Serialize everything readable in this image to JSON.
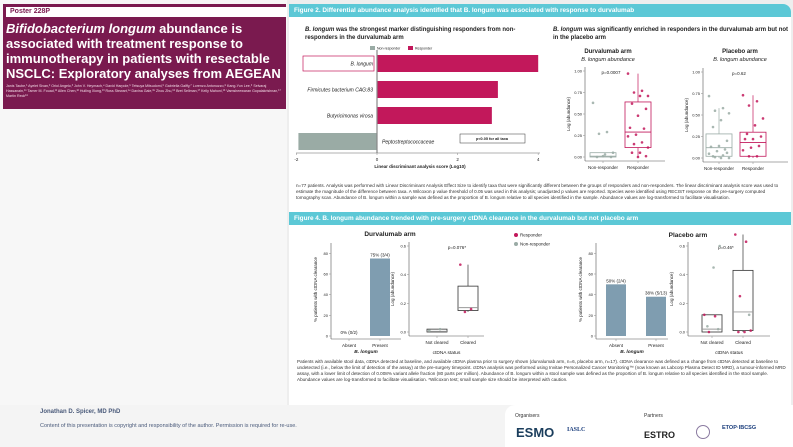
{
  "poster": {
    "number": "Poster 228P",
    "title_italic": "Bifidobacterium longum",
    "title_rest": " abundance is associated with treatment response to immunotherapy in patients with resectable NSCLC: Exploratory analyses from AEGEAN",
    "authors": "Janis Taube,¹ Ayelet Sivan,² Oriol Angelo,³ John V. Heymach,⁴ David Harpole,⁵ Tetsuya Mitsudomi,⁶ Gabriella Galffy,⁷ Lorenzo Antonuzzo,⁸ Kang-Yun Lee,⁹ Selvaraj Hassanain,¹⁰ Tamer M. Fouad,¹¹ Allen Chen,¹² Huiling Xiong,¹³ Ross Stewart,¹⁴ Davina Gale,¹⁵ Zhou Zhu,¹⁶ Bret Sellman,¹⁷ Kelly Mahoni,¹⁶ Vamsheewaran Gopalakrishnan,¹⁷ Martin Reck¹⁸"
  },
  "fig2": {
    "header": "Figure 2. Differential abundance analysis identified that B. longum was associated with response to durvalumab",
    "left_sub_italic": "B. longum",
    "left_sub_rest": " was the strongest marker distinguishing responders from non-responders in the durvalumab arm",
    "right_sub_italic": "B. longum",
    "right_sub_rest": " was significantly enriched in responders in the durvalumab arm but not in the placebo arm",
    "caption": "n=77 patients. Analysis was performed with Linear Discriminant Analysis Effect Size to identify taxa that were significantly different between the groups of responders and non-responders. The linear discriminant analysis score was used to estimate the magnitude of the difference between taxa. A Wilcoxon p value threshold of 0.05 was used in this analysis; unadjusted p values are reported. Species were identified using RECIST response on the pre-surgery computed tomography scan. Abundance of B. longum within a sample was defined as the proportion of B. longum relative to all species identified in the sample. Abundance values are log-transformed to facilitate visualisation."
  },
  "fig4": {
    "header": "Figure 4. B. longum abundance trended with pre-surgery ctDNA clearance in the durvalumab but not placebo arm",
    "caption": "Patients with available stool data, ctDNA detected at baseline, and available ctDNA plasma prior to surgery shown (durvalumab arm, n=6, placebo arm, n=17). ctDNA clearance was defined as a change from ctDNA detected at baseline to undetected (i.e., below the limit of detection of the assay) at the pre-surgery timepoint. ctDNA analysis was performed using Invitae Personalized Cancer Monitoring™ (now known as Labcorp Plasma Detect ID MRD), a tumour-informed MRD assay, with a lower limit of detection of 0.008% variant allele fraction (80 parts per million). Abundance of B. longum within a stool sample was defined as the proportion of B. longum relative to all species identified in the stool sample. Abundance values are log-transformed to facilitate visualisation. *Wilcoxon test; small sample size should be interpreted with caution.",
    "legend": [
      {
        "label": "Responder",
        "color": "#c2185b"
      },
      {
        "label": "Non-responder",
        "color": "#9aaba5"
      }
    ]
  },
  "footer": {
    "presenter": "Jonathan D. Spicer, MD PhD",
    "copyright": "Content of this presentation is copyright and responsibility of the author. Permission is required for re-use.",
    "organisers": "Organisers",
    "partners": "Partners",
    "logos": [
      "ESMO",
      "IASLC",
      "ESTRO",
      "ETOP·IBCSG"
    ]
  },
  "colors": {
    "maroon": "#7a1a4f",
    "teal": "#5cc8d6",
    "responder": "#c2185b",
    "non_responder": "#9aaba5",
    "bar_blue": "#7f9db0"
  },
  "chart_data": [
    {
      "type": "bar",
      "orientation": "horizontal",
      "legend": [
        "Non-responder",
        "Responder"
      ],
      "categories": [
        "B. longum",
        "Firmicutes bacterium CAG:83",
        "Butyricimonas virosa",
        "Peptostreptococcaceae"
      ],
      "values": [
        4.0,
        3.0,
        2.85,
        -1.95
      ],
      "groups": [
        "Responder",
        "Responder",
        "Responder",
        "Non-responder"
      ],
      "xlabel": "Linear discriminant analysis score (Log10)",
      "xlim": [
        -2,
        4
      ],
      "xticks": [
        -2,
        0,
        2,
        4
      ],
      "annotation": "p<0.05 for all taxa"
    },
    {
      "type": "box",
      "title": "Durvalumab arm",
      "subtitle": "B. longum abundance",
      "ylabel": "Log (abundance)",
      "ylim": [
        0,
        1
      ],
      "yticks": [
        "0.00",
        "0.25",
        "0.50",
        "0.75",
        "1.00"
      ],
      "pvalue": "p=0.0007",
      "groups": [
        {
          "name": "Non-responder",
          "q1": 0.0,
          "median": 0.01,
          "q3": 0.05,
          "wlo": 0,
          "whi": 0.05,
          "points": [
            0.63,
            0.29,
            0.27,
            0.05,
            0.03,
            0.0,
            0.0,
            0.01
          ]
        },
        {
          "name": "Responder",
          "q1": 0.11,
          "median": 0.29,
          "q3": 0.64,
          "wlo": 0,
          "whi": 0.97,
          "points": [
            0.97,
            0.77,
            0.75,
            0.71,
            0.71,
            0.62,
            0.56,
            0.48,
            0.34,
            0.33,
            0.26,
            0.24,
            0.17,
            0.15,
            0.11,
            0.05,
            0.05,
            0.01,
            0.0
          ]
        }
      ]
    },
    {
      "type": "box",
      "title": "Placebo arm",
      "subtitle": "B. longum abundance",
      "ylabel": "Log (abundance)",
      "ylim": [
        0,
        1
      ],
      "yticks": [
        "0.00",
        "0.25",
        "0.50",
        "0.75",
        "1.00"
      ],
      "pvalue": "p=0.62",
      "groups": [
        {
          "name": "Non-responder",
          "q1": 0.02,
          "median": 0.12,
          "q3": 0.28,
          "wlo": 0,
          "whi": 0.58,
          "points": [
            0.72,
            0.58,
            0.55,
            0.52,
            0.44,
            0.36,
            0.2,
            0.14,
            0.13,
            0.1,
            0.08,
            0.05,
            0.03,
            0.01,
            0,
            0,
            0.02,
            0.06
          ]
        },
        {
          "name": "Responder",
          "q1": 0.02,
          "median": 0.18,
          "q3": 0.3,
          "wlo": 0,
          "whi": 0.73,
          "points": [
            0.73,
            0.66,
            0.61,
            0.46,
            0.38,
            0.28,
            0.25,
            0.22,
            0.22,
            0.14,
            0.12,
            0.09,
            0.02,
            0.02
          ]
        }
      ]
    },
    {
      "type": "bar",
      "title": "Durvalumab arm",
      "categories": [
        "Absent",
        "Present"
      ],
      "values": [
        0,
        75
      ],
      "labels": [
        "0% (0/2)",
        "75% (3/4)"
      ],
      "xlabel": "B. longum",
      "ylabel": "% patients with ctDNA clearance",
      "ylim": [
        0,
        90
      ],
      "yticks": [
        0,
        20,
        40,
        60,
        80
      ]
    },
    {
      "type": "box",
      "ylabel": "Log (abundance)",
      "xlabel": "ctDNA status",
      "ylim": [
        0,
        0.6
      ],
      "yticks": [
        "0.0",
        "0.2",
        "0.4",
        "0.6"
      ],
      "pvalue": "p=0.076*",
      "groups": [
        {
          "name": "Not cleared",
          "q1": 0,
          "median": 0.005,
          "q3": 0.02,
          "wlo": 0,
          "whi": 0.02,
          "responder": [],
          "non_responder": [
            0.01,
            0.02
          ]
        },
        {
          "name": "Cleared",
          "q1": 0.15,
          "median": 0.17,
          "q3": 0.32,
          "wlo": 0.14,
          "whi": 0.47,
          "responder": [
            0.47,
            0.16,
            0.14
          ],
          "non_responder": []
        }
      ]
    },
    {
      "type": "bar",
      "title": "Placebo arm",
      "categories": [
        "Absent",
        "Present"
      ],
      "values": [
        50,
        38
      ],
      "labels": [
        "50% (2/4)",
        "38% (5/13)"
      ],
      "xlabel": "B. longum",
      "ylabel": "% patients with ctDNA clearance",
      "ylim": [
        0,
        90
      ],
      "yticks": [
        0,
        20,
        40,
        60,
        80
      ]
    },
    {
      "type": "box",
      "ylabel": "Log (abundance)",
      "xlabel": "ctDNA status",
      "ylim": [
        0,
        0.6
      ],
      "yticks": [
        "0.0",
        "0.2",
        "0.4",
        "0.6"
      ],
      "pvalue": "p=0.46*",
      "groups": [
        {
          "name": "Not cleared",
          "q1": 0,
          "median": 0.02,
          "q3": 0.12,
          "wlo": 0,
          "whi": 0.12,
          "responder": [
            0.12,
            0.11,
            0.0
          ],
          "non_responder": [
            0.6,
            0.45,
            0.04,
            0.02
          ]
        },
        {
          "name": "Cleared",
          "q1": 0.01,
          "median": 0.14,
          "q3": 0.43,
          "wlo": 0,
          "whi": 0.68,
          "responder": [
            0.68,
            0.63,
            0.25,
            0.01,
            0.0,
            0.0
          ],
          "non_responder": [
            0.12
          ]
        }
      ]
    }
  ]
}
